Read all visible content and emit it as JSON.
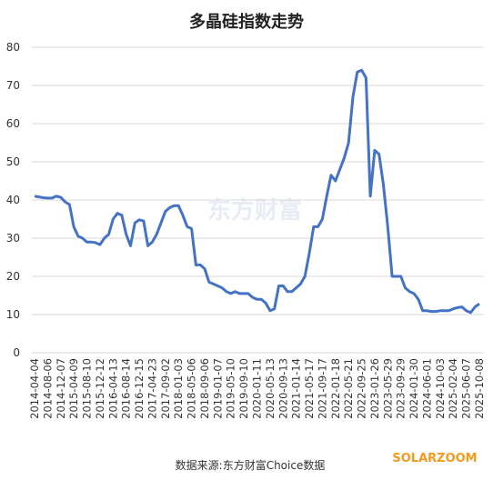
{
  "chart_data": {
    "type": "line",
    "title": "多晶硅指数走势",
    "source": "数据来源:东方财富Choice数据",
    "brand": "SOLARZOOM",
    "watermark": "东方财富",
    "categories": [
      "2014-04-04",
      null,
      null,
      "2014-08-06",
      null,
      null,
      "2014-12-07",
      null,
      null,
      "2015-04-09",
      null,
      null,
      "2015-08-10",
      null,
      null,
      "2015-12-12",
      null,
      null,
      "2016-04-13",
      null,
      null,
      "2016-08-14",
      null,
      null,
      "2016-12-15",
      null,
      null,
      "2017-04-23",
      null,
      null,
      "2017-09-02",
      null,
      null,
      "2018-01-03",
      null,
      null,
      "2018-05-06",
      null,
      null,
      "2018-09-06",
      null,
      null,
      "2019-01-07",
      null,
      null,
      "2019-05-10",
      null,
      null,
      "2019-09-10",
      null,
      null,
      "2020-01-11",
      null,
      null,
      "2020-05-13",
      null,
      null,
      "2020-09-13",
      null,
      null,
      "2021-01-14",
      null,
      null,
      "2021-05-17",
      null,
      null,
      "2021-09-17",
      null,
      null,
      "2022-01-18",
      null,
      null,
      "2022-05-21",
      null,
      null,
      "2022-09-25",
      null,
      null,
      "2023-01-26",
      null,
      null,
      "2023-05-29",
      null,
      null,
      "2023-09-29",
      null,
      null,
      "2024-01-30",
      null,
      null,
      "2024-06-01",
      null,
      null,
      "2024-10-03",
      null,
      null,
      "2025-02-04",
      null,
      null,
      "2025-06-07",
      null,
      null,
      "2025-10-08"
    ],
    "series": [
      {
        "name": "多晶硅指数",
        "color": "#4472c4",
        "values": [
          41,
          40.8,
          40.6,
          40.5,
          40.5,
          41,
          40.7,
          39.5,
          38.8,
          33,
          30.5,
          30,
          29,
          29,
          28.8,
          28.3,
          30,
          31,
          35,
          36.5,
          36,
          31,
          28,
          34,
          34.8,
          34.5,
          28,
          29,
          31,
          34,
          37,
          38,
          38.5,
          38.5,
          36,
          33,
          32.5,
          23,
          23,
          22,
          18.5,
          18,
          17.5,
          17,
          16,
          15.5,
          16,
          15.5,
          15.5,
          15.5,
          14.5,
          14,
          14,
          13,
          11,
          11.5,
          17.5,
          17.5,
          16,
          16,
          17,
          18,
          20,
          26,
          33,
          33,
          35,
          41,
          46.5,
          45,
          48,
          51,
          55,
          67,
          73.5,
          74,
          72,
          41,
          53,
          52,
          44,
          33,
          20,
          20,
          20,
          17,
          16,
          15.5,
          14,
          11,
          11,
          10.8,
          10.8,
          11,
          11,
          11,
          11.5,
          11.8,
          12,
          11,
          10.5,
          12,
          12.8
        ]
      }
    ],
    "ylim": [
      0,
      80
    ],
    "yticks": [
      0,
      10,
      20,
      30,
      40,
      50,
      60,
      70,
      80
    ],
    "grid": true
  }
}
